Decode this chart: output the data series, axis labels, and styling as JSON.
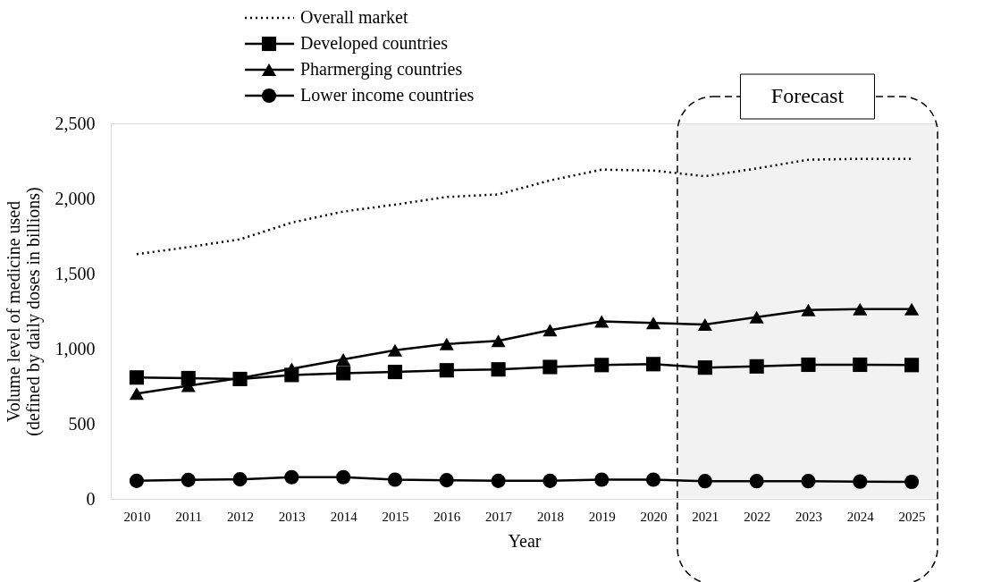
{
  "chart_data": {
    "type": "line",
    "xlabel": "Year",
    "ylabel": "Volume level of medicine used (defined by daily doses in billions)",
    "categories": [
      "2010",
      "2011",
      "2012",
      "2013",
      "2014",
      "2015",
      "2016",
      "2017",
      "2018",
      "2019",
      "2020",
      "2021",
      "2022",
      "2023",
      "2024",
      "2025"
    ],
    "series": [
      {
        "name": "Overall market",
        "color": "#000000",
        "line_style": "dotted",
        "marker": "none",
        "values": [
          1629,
          1676,
          1728,
          1839,
          1913,
          1959,
          2010,
          2027,
          2120,
          2192,
          2186,
          2148,
          2200,
          2258,
          2264,
          2264
        ]
      },
      {
        "name": "Developed countries",
        "color": "#000000",
        "line_style": "solid",
        "marker": "square",
        "values": [
          808,
          804,
          798,
          825,
          837,
          845,
          856,
          862,
          878,
          891,
          897,
          874,
          882,
          893,
          893,
          891
        ]
      },
      {
        "name": "Pharmerging countries",
        "color": "#000000",
        "line_style": "solid",
        "marker": "triangle",
        "values": [
          701,
          753,
          804,
          866,
          928,
          990,
          1031,
          1052,
          1124,
          1181,
          1171,
          1161,
          1210,
          1258,
          1264,
          1264
        ]
      },
      {
        "name": "Lower income countries",
        "color": "#000000",
        "line_style": "solid",
        "marker": "circle",
        "values": [
          120,
          126,
          130,
          144,
          144,
          128,
          124,
          120,
          120,
          128,
          128,
          118,
          118,
          118,
          115,
          113
        ]
      }
    ],
    "ylim": [
      0,
      2500
    ],
    "yticks": [
      0,
      500,
      {
        "value": 1000,
        "label": "1,000"
      },
      {
        "value": 1500,
        "label": "1,500"
      },
      {
        "value": 2000,
        "label": "2,000"
      },
      {
        "value": 2500,
        "label": "2,500"
      }
    ],
    "bands": [
      {
        "axis": "x",
        "from": "2021",
        "to": "2025",
        "label": "Forecast",
        "color": "#f2f2f2"
      }
    ],
    "grid": false,
    "legend": "top"
  }
}
